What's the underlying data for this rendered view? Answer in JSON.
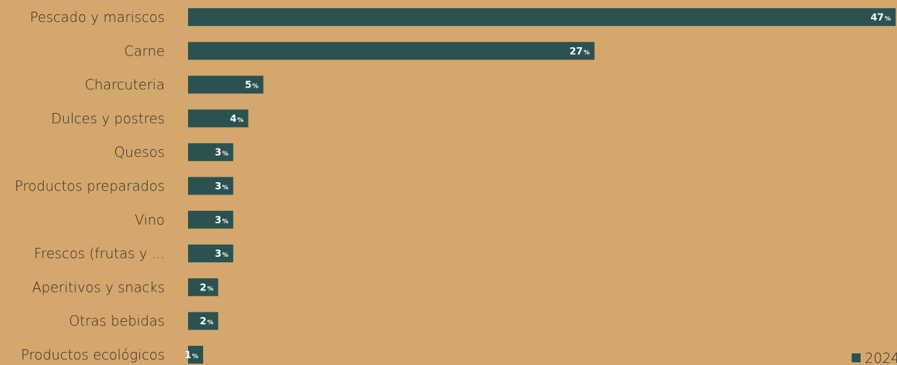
{
  "chart_data": {
    "type": "bar",
    "orientation": "horizontal",
    "categories": [
      "Pescado y mariscos",
      "Carne",
      "Charcuteria",
      "Dulces y postres",
      "Quesos",
      "Productos preparados",
      "Vino",
      "Frescos (frutas y ...",
      "Aperitivos y snacks",
      "Otras bebidas",
      "Productos ecológicos"
    ],
    "series": [
      {
        "name": "2024",
        "values": [
          47,
          27,
          5,
          4,
          3,
          3,
          3,
          3,
          2,
          2,
          1
        ],
        "color": "#2b5250"
      }
    ],
    "value_suffix": "%",
    "xlim": [
      0,
      47
    ],
    "grid": false,
    "legend_position": "bottom-right",
    "colors": {
      "background": "#d4a76c",
      "bar": "#2b5250",
      "label_text": "#2b2b2b",
      "value_text": "#ffffff"
    }
  }
}
